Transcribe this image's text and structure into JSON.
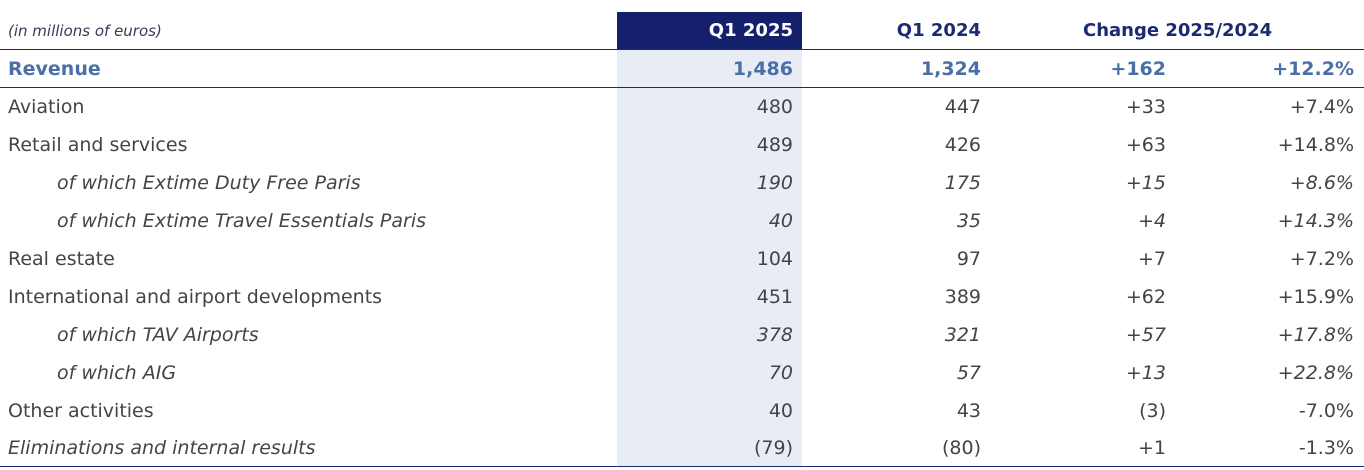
{
  "header": {
    "unit_label": "(in millions of euros)",
    "col_q1_2025": "Q1 2025",
    "col_q1_2024": "Q1 2024",
    "col_change": "Change 2025/2024"
  },
  "rows": [
    {
      "label": "Revenue",
      "q1_2025": "1,486",
      "q1_2024": "1,324",
      "change": "+162",
      "pct": "+12.2%"
    },
    {
      "label": "Aviation",
      "q1_2025": "480",
      "q1_2024": "447",
      "change": "+33",
      "pct": "+7.4%"
    },
    {
      "label": "Retail and services",
      "q1_2025": "489",
      "q1_2024": "426",
      "change": "+63",
      "pct": "+14.8%"
    },
    {
      "label": "of which Extime Duty Free Paris",
      "q1_2025": "190",
      "q1_2024": "175",
      "change": "+15",
      "pct": "+8.6%"
    },
    {
      "label": "of which Extime Travel Essentials Paris",
      "q1_2025": "40",
      "q1_2024": "35",
      "change": "+4",
      "pct": "+14.3%"
    },
    {
      "label": "Real estate",
      "q1_2025": "104",
      "q1_2024": "97",
      "change": "+7",
      "pct": "+7.2%"
    },
    {
      "label": "International and airport developments",
      "q1_2025": "451",
      "q1_2024": "389",
      "change": "+62",
      "pct": "+15.9%"
    },
    {
      "label": "of which TAV Airports",
      "q1_2025": "378",
      "q1_2024": "321",
      "change": "+57",
      "pct": "+17.8%"
    },
    {
      "label": "of which AIG",
      "q1_2025": "70",
      "q1_2024": "57",
      "change": "+13",
      "pct": "+22.8%"
    },
    {
      "label": "Other activities",
      "q1_2025": "40",
      "q1_2024": "43",
      "change": "(3)",
      "pct": "-7.0%"
    },
    {
      "label": "Eliminations and internal results",
      "q1_2025": "(79)",
      "q1_2024": "(80)",
      "change": "+1",
      "pct": "-1.3%"
    }
  ],
  "colors": {
    "header_dark": "#14206b",
    "header_text": "#1b2a72",
    "revenue_text": "#4a6fa8",
    "q1_2025_band": "#e8edf5"
  }
}
